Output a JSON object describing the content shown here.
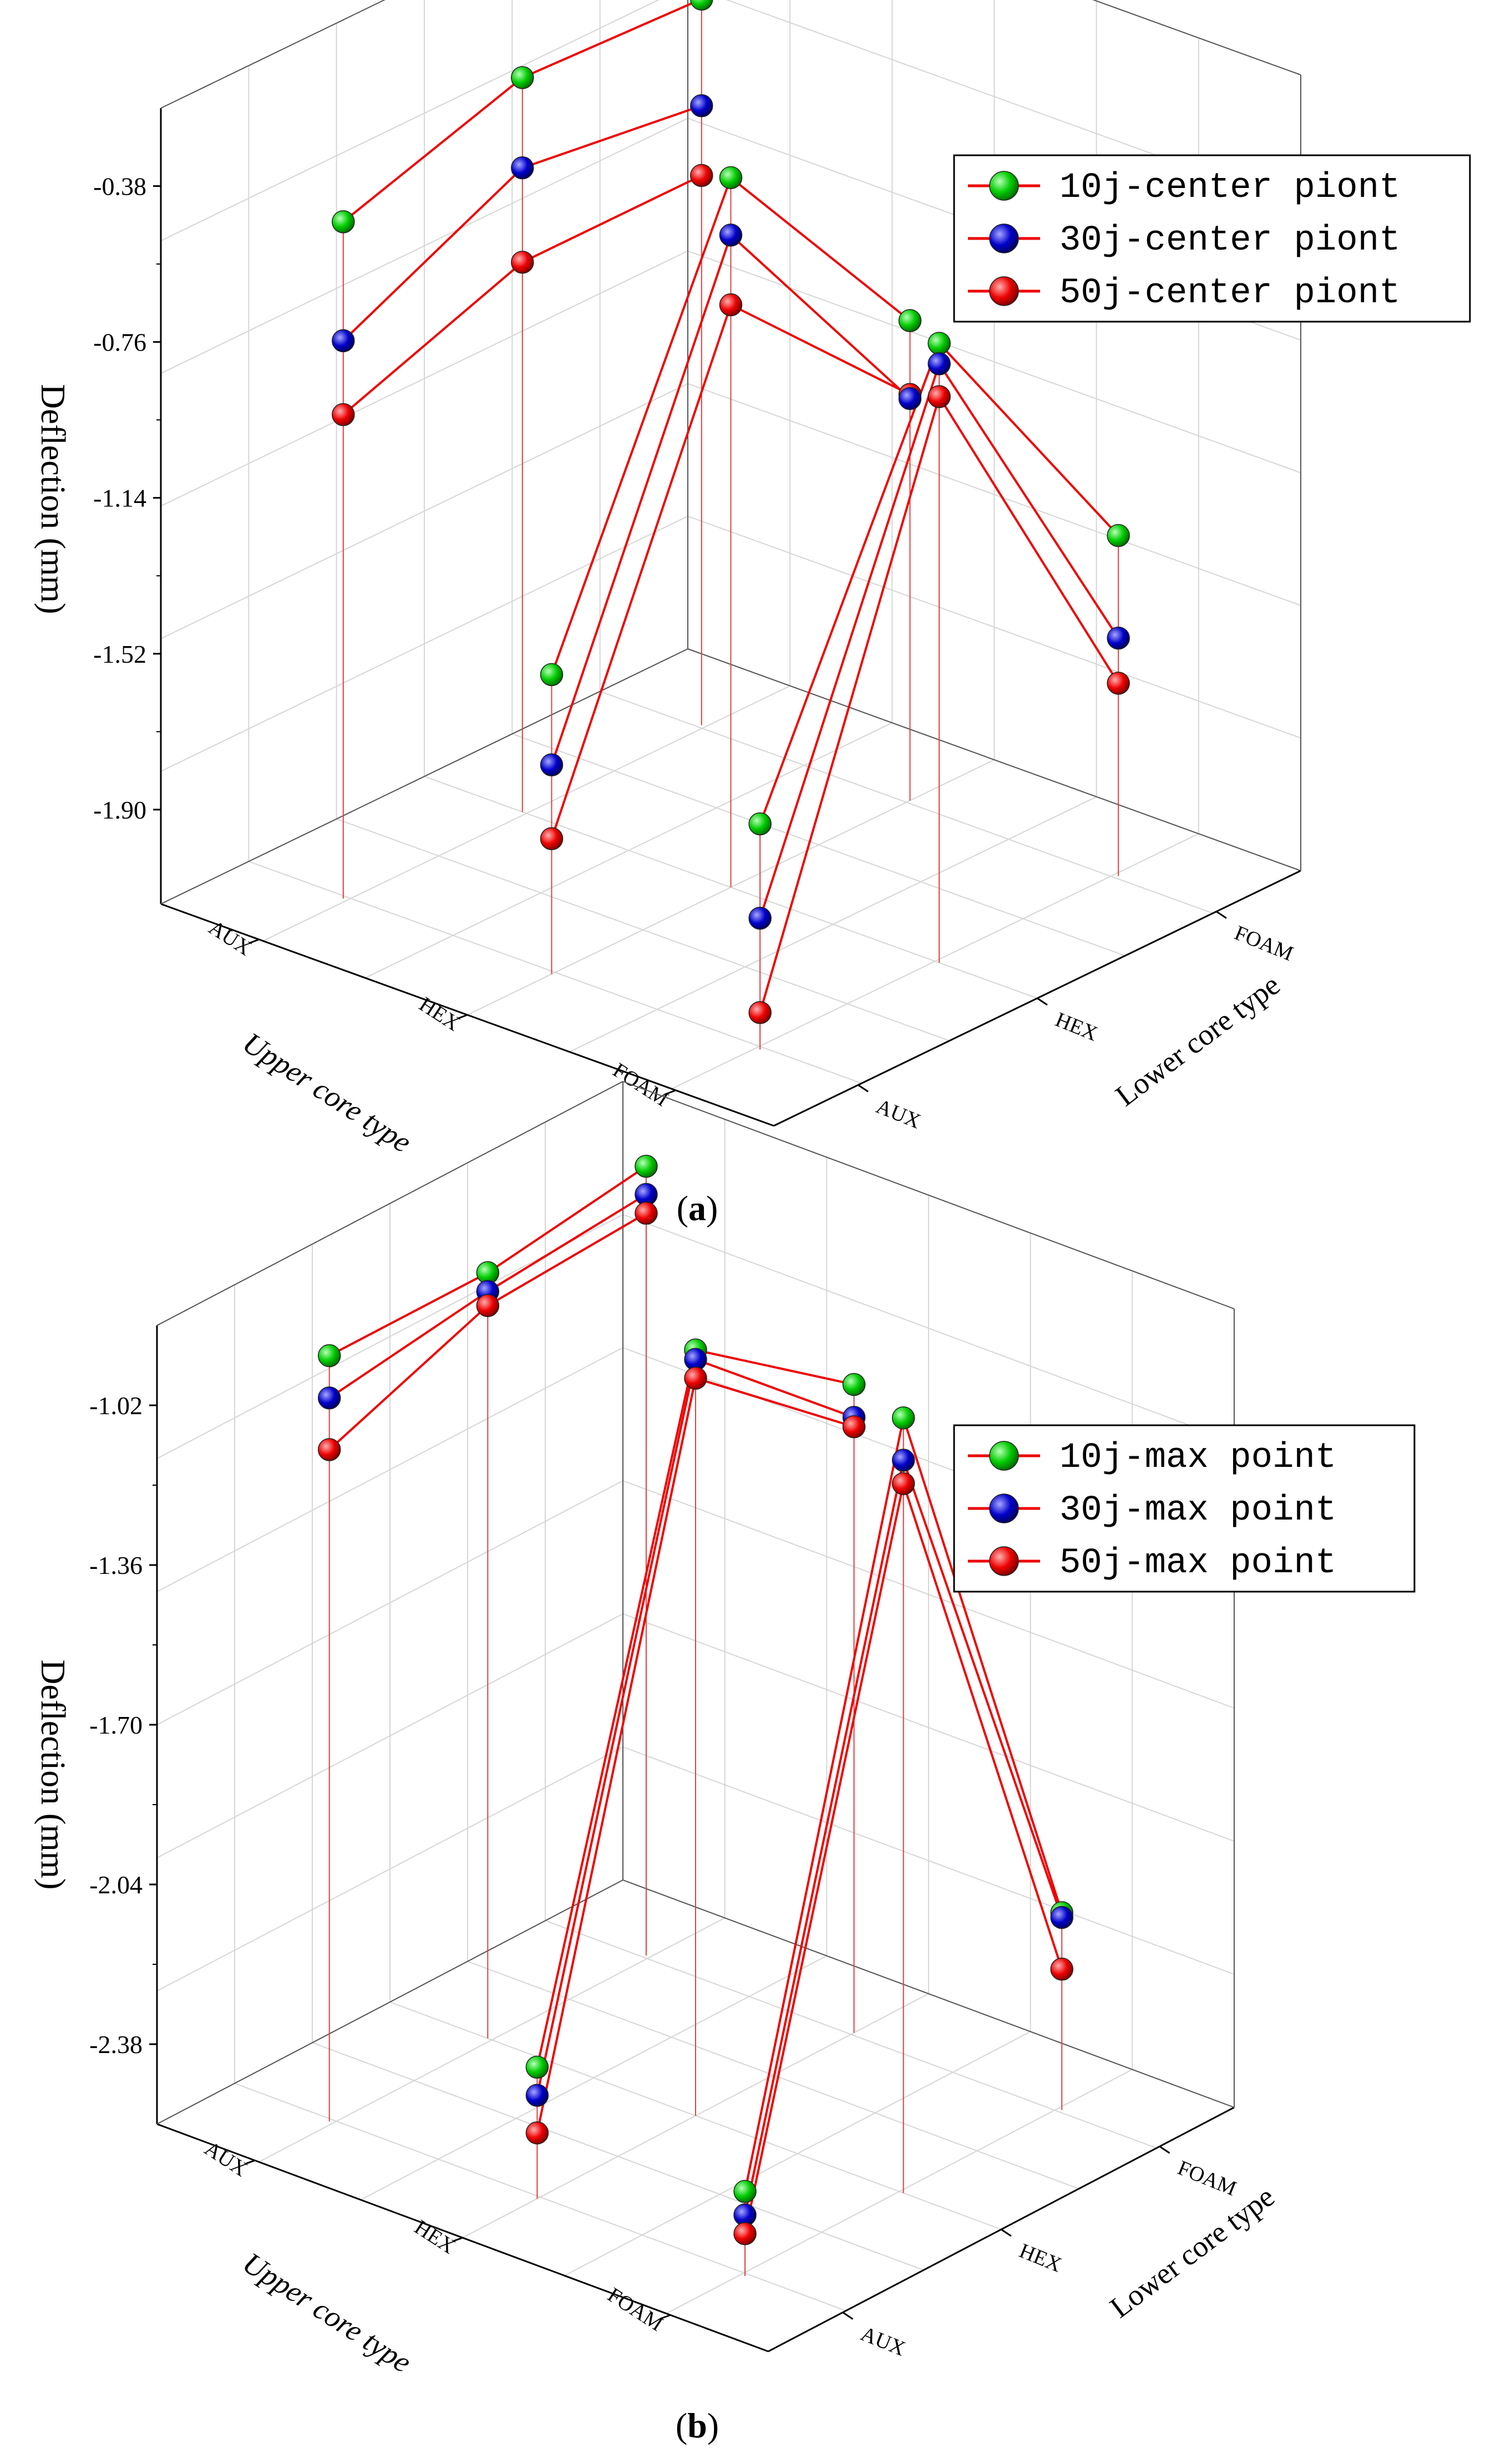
{
  "colors": {
    "green": "#00cc00",
    "blue": "#0000cc",
    "red": "#ee0000",
    "drop_line": "#e04040",
    "grid": "#d6d6d6",
    "axis": "#000000"
  },
  "chart_data": [
    {
      "type": "scatter3d",
      "panel_label": "(a)",
      "panel_letter": "a",
      "xlabel": "Upper core type",
      "ylabel": "Lower core type",
      "zlabel": "Deflection (mm)",
      "x_categories": [
        "AUX",
        "HEX",
        "FOAM"
      ],
      "y_categories": [
        "AUX",
        "HEX",
        "FOAM"
      ],
      "z_ticks": [
        "-0.38",
        "-0.76",
        "-1.14",
        "-1.52",
        "-1.90"
      ],
      "zlim": [
        -2.13,
        -0.19
      ],
      "grid": true,
      "legend_position": "top-right",
      "series": [
        {
          "name": "10j-center piont",
          "color": "green",
          "points": [
            {
              "upper": "AUX",
              "lower": "HEX",
              "deflection": -0.34
            },
            {
              "upper": "AUX",
              "lower": "FOAM",
              "deflection": -0.36
            },
            {
              "upper": "AUX",
              "lower": "AUX",
              "deflection": -0.48
            },
            {
              "upper": "HEX",
              "lower": "HEX",
              "deflection": -0.4
            },
            {
              "upper": "HEX",
              "lower": "FOAM",
              "deflection": -0.96
            },
            {
              "upper": "HEX",
              "lower": "AUX",
              "deflection": -1.4
            },
            {
              "upper": "FOAM",
              "lower": "HEX",
              "deflection": -0.62
            },
            {
              "upper": "FOAM",
              "lower": "FOAM",
              "deflection": -1.3
            },
            {
              "upper": "FOAM",
              "lower": "AUX",
              "deflection": -1.58
            }
          ]
        },
        {
          "name": "30j-center piont",
          "color": "blue",
          "points": [
            {
              "upper": "AUX",
              "lower": "HEX",
              "deflection": -0.56
            },
            {
              "upper": "AUX",
              "lower": "FOAM",
              "deflection": -0.62
            },
            {
              "upper": "AUX",
              "lower": "AUX",
              "deflection": -0.77
            },
            {
              "upper": "HEX",
              "lower": "HEX",
              "deflection": -0.54
            },
            {
              "upper": "HEX",
              "lower": "FOAM",
              "deflection": -1.15
            },
            {
              "upper": "HEX",
              "lower": "AUX",
              "deflection": -1.62
            },
            {
              "upper": "FOAM",
              "lower": "HEX",
              "deflection": -0.67
            },
            {
              "upper": "FOAM",
              "lower": "FOAM",
              "deflection": -1.55
            },
            {
              "upper": "FOAM",
              "lower": "AUX",
              "deflection": -1.81
            }
          ]
        },
        {
          "name": "50j-center piont",
          "color": "red",
          "points": [
            {
              "upper": "AUX",
              "lower": "HEX",
              "deflection": -0.79
            },
            {
              "upper": "AUX",
              "lower": "FOAM",
              "deflection": -0.79
            },
            {
              "upper": "AUX",
              "lower": "AUX",
              "deflection": -0.95
            },
            {
              "upper": "HEX",
              "lower": "HEX",
              "deflection": -0.71
            },
            {
              "upper": "HEX",
              "lower": "FOAM",
              "deflection": -1.14
            },
            {
              "upper": "HEX",
              "lower": "AUX",
              "deflection": -1.8
            },
            {
              "upper": "FOAM",
              "lower": "HEX",
              "deflection": -0.75
            },
            {
              "upper": "FOAM",
              "lower": "FOAM",
              "deflection": -1.66
            },
            {
              "upper": "FOAM",
              "lower": "AUX",
              "deflection": -2.04
            }
          ]
        }
      ]
    },
    {
      "type": "scatter3d",
      "panel_label": "(b)",
      "panel_letter": "b",
      "xlabel": "Upper core type",
      "ylabel": "Lower core type",
      "zlabel": "Deflection (mm)",
      "x_categories": [
        "AUX",
        "HEX",
        "FOAM"
      ],
      "y_categories": [
        "AUX",
        "HEX",
        "FOAM"
      ],
      "z_ticks": [
        "-1.02",
        "-1.36",
        "-1.70",
        "-2.04",
        "-2.38"
      ],
      "zlim": [
        -2.55,
        -0.85
      ],
      "grid": true,
      "legend_position": "top-right",
      "series": [
        {
          "name": "10j-max point",
          "color": "green",
          "points": [
            {
              "upper": "AUX",
              "lower": "HEX",
              "deflection": -0.92
            },
            {
              "upper": "AUX",
              "lower": "FOAM",
              "deflection": -0.87
            },
            {
              "upper": "AUX",
              "lower": "AUX",
              "deflection": -0.92
            },
            {
              "upper": "HEX",
              "lower": "HEX",
              "deflection": -0.92
            },
            {
              "upper": "HEX",
              "lower": "FOAM",
              "deflection": -1.17
            },
            {
              "upper": "HEX",
              "lower": "AUX",
              "deflection": -2.27
            },
            {
              "upper": "FOAM",
              "lower": "HEX",
              "deflection": -0.9
            },
            {
              "upper": "FOAM",
              "lower": "FOAM",
              "deflection": -2.13
            },
            {
              "upper": "FOAM",
              "lower": "AUX",
              "deflection": -2.37
            }
          ]
        },
        {
          "name": "30j-max point",
          "color": "blue",
          "points": [
            {
              "upper": "AUX",
              "lower": "HEX",
              "deflection": -0.96
            },
            {
              "upper": "AUX",
              "lower": "FOAM",
              "deflection": -0.93
            },
            {
              "upper": "AUX",
              "lower": "AUX",
              "deflection": -1.01
            },
            {
              "upper": "HEX",
              "lower": "HEX",
              "deflection": -0.94
            },
            {
              "upper": "HEX",
              "lower": "FOAM",
              "deflection": -1.24
            },
            {
              "upper": "HEX",
              "lower": "AUX",
              "deflection": -2.33
            },
            {
              "upper": "FOAM",
              "lower": "HEX",
              "deflection": -0.99
            },
            {
              "upper": "FOAM",
              "lower": "FOAM",
              "deflection": -2.14
            },
            {
              "upper": "FOAM",
              "lower": "AUX",
              "deflection": -2.42
            }
          ]
        },
        {
          "name": "50j-max point",
          "color": "red",
          "points": [
            {
              "upper": "AUX",
              "lower": "HEX",
              "deflection": -0.99
            },
            {
              "upper": "AUX",
              "lower": "FOAM",
              "deflection": -0.97
            },
            {
              "upper": "AUX",
              "lower": "AUX",
              "deflection": -1.12
            },
            {
              "upper": "HEX",
              "lower": "HEX",
              "deflection": -0.98
            },
            {
              "upper": "HEX",
              "lower": "FOAM",
              "deflection": -1.26
            },
            {
              "upper": "HEX",
              "lower": "AUX",
              "deflection": -2.41
            },
            {
              "upper": "FOAM",
              "lower": "HEX",
              "deflection": -1.04
            },
            {
              "upper": "FOAM",
              "lower": "FOAM",
              "deflection": -2.25
            },
            {
              "upper": "FOAM",
              "lower": "AUX",
              "deflection": -2.46
            }
          ]
        }
      ]
    }
  ]
}
